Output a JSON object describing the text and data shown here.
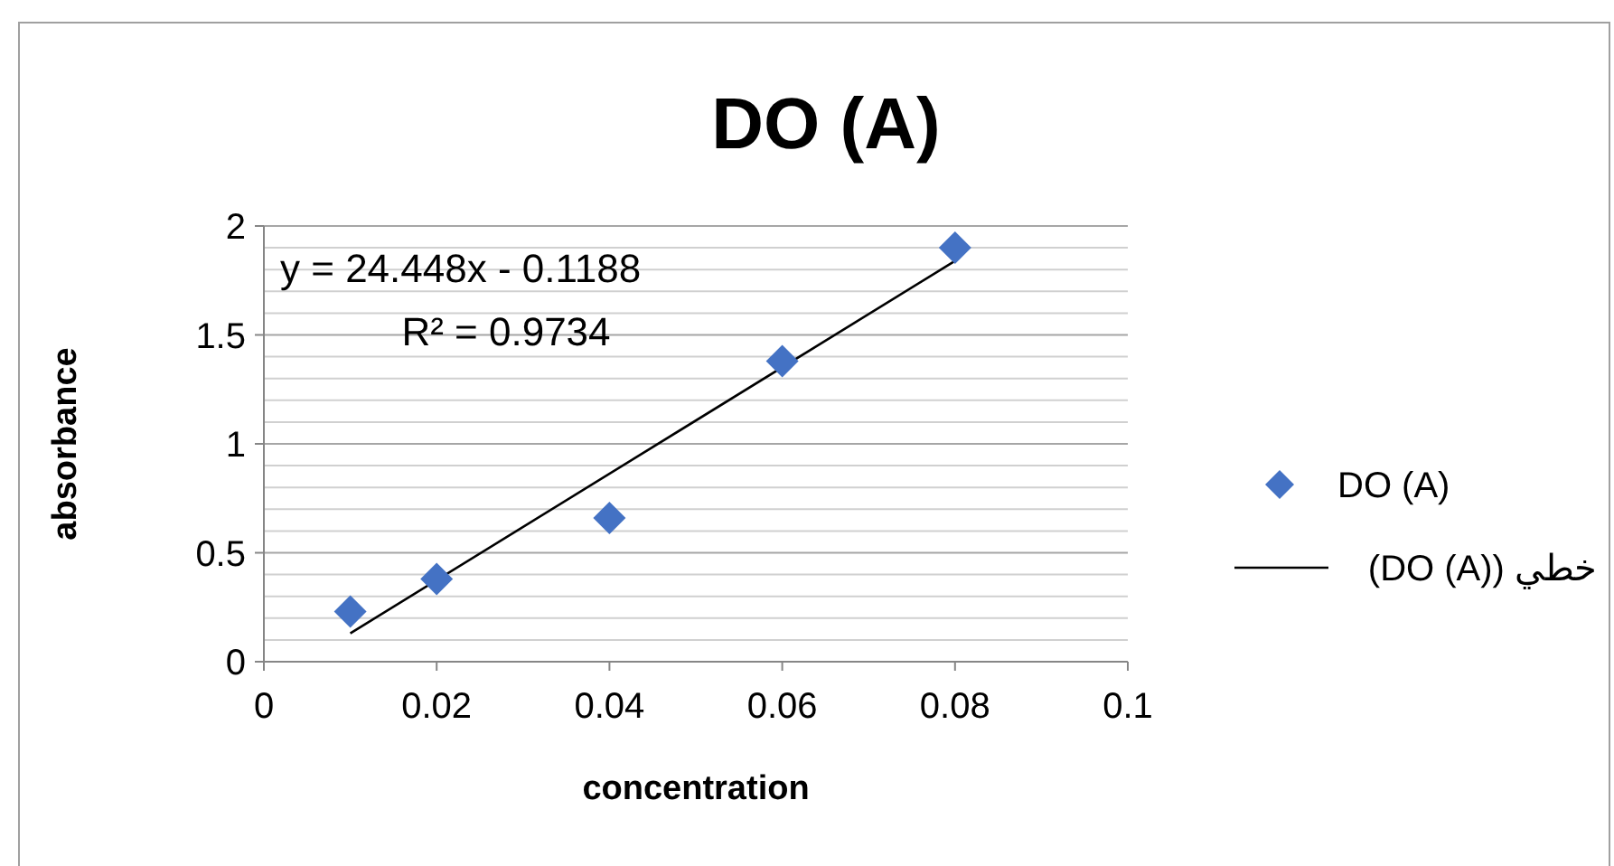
{
  "chart_data": {
    "type": "scatter",
    "title": "DO (A)",
    "xlabel": "concentration",
    "ylabel": "absorbance",
    "series": [
      {
        "name": "DO (A)",
        "color": "#4472c4",
        "marker": "diamond",
        "x": [
          0.01,
          0.02,
          0.04,
          0.06,
          0.08
        ],
        "values": [
          0.23,
          0.38,
          0.66,
          1.38,
          1.9
        ]
      },
      {
        "name": "خطي (DO (A))",
        "type": "line",
        "color": "#000000",
        "line_style": "solid",
        "marker": "none",
        "x": [
          0.01,
          0.08
        ],
        "values": [
          0.13,
          1.84
        ]
      }
    ],
    "annotations": [
      "y = 24.448x - 0.1188",
      "R² = 0.9734"
    ],
    "xlim": [
      0,
      0.1
    ],
    "xticks": [
      0,
      0.02,
      0.04,
      0.06,
      0.08,
      0.1
    ],
    "ylim": [
      0,
      2
    ],
    "yticks": [
      0,
      {
        "value": 0.1,
        "label": null
      },
      {
        "value": 0.2,
        "label": null
      },
      {
        "value": 0.3,
        "label": null
      },
      {
        "value": 0.4,
        "label": null
      },
      0.5,
      {
        "value": 0.6,
        "label": null
      },
      {
        "value": 0.7,
        "label": null
      },
      {
        "value": 0.8,
        "label": null
      },
      {
        "value": 0.9,
        "label": null
      },
      1,
      {
        "value": 1.1,
        "label": null
      },
      {
        "value": 1.2,
        "label": null
      },
      {
        "value": 1.3,
        "label": null
      },
      {
        "value": 1.4,
        "label": null
      },
      1.5,
      {
        "value": 1.6,
        "label": null
      },
      {
        "value": 1.7,
        "label": null
      },
      {
        "value": 1.8,
        "label": null
      },
      {
        "value": 1.9,
        "label": null
      },
      2
    ],
    "grid": "y",
    "legend": "right"
  }
}
